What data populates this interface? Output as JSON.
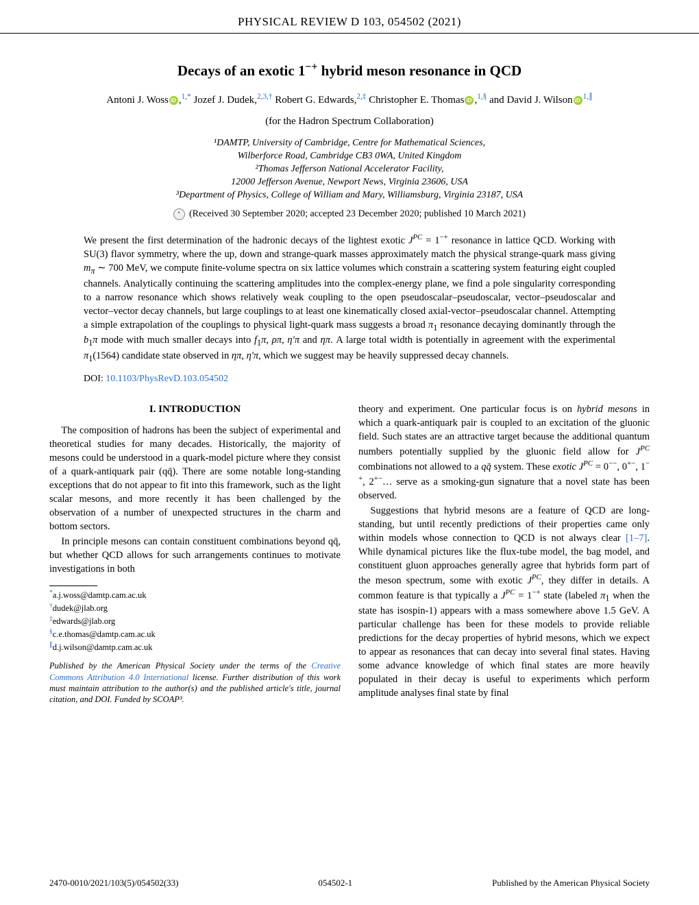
{
  "journal_header": "PHYSICAL REVIEW D 103, 054502 (2021)",
  "title_html": "Decays of an exotic 1<sup>−+</sup> hybrid meson resonance in QCD",
  "authors": {
    "a1": {
      "name": "Antoni J. Woss",
      "sup": "1,*"
    },
    "a2": {
      "name": "Jozef J. Dudek",
      "sup": "2,3,†"
    },
    "a3": {
      "name": "Robert G. Edwards",
      "sup": "2,‡"
    },
    "a4": {
      "name": "Christopher E. Thomas",
      "sup": "1,§"
    },
    "a5": {
      "name": "David J. Wilson",
      "sup": "1,∥"
    }
  },
  "collaboration": "(for the Hadron Spectrum Collaboration)",
  "affiliations": {
    "l1": "¹DAMTP, University of Cambridge, Centre for Mathematical Sciences,",
    "l2": "Wilberforce Road, Cambridge CB3 0WA, United Kingdom",
    "l3": "²Thomas Jefferson National Accelerator Facility,",
    "l4": "12000 Jefferson Avenue, Newport News, Virginia 23606, USA",
    "l5": "³Department of Physics, College of William and Mary, Williamsburg, Virginia 23187, USA"
  },
  "received": "(Received 30 September 2020; accepted 23 December 2020; published 10 March 2021)",
  "abstract_html": "We present the first determination of the hadronic decays of the lightest exotic <i>J<sup>PC</sup></i> = 1<sup>−+</sup> resonance in lattice QCD. Working with SU(3) flavor symmetry, where the up, down and strange-quark masses approximately match the physical strange-quark mass giving <i>m<sub>π</sub></i> ∼ 700 MeV, we compute finite-volume spectra on six lattice volumes which constrain a scattering system featuring eight coupled channels. Analytically continuing the scattering amplitudes into the complex-energy plane, we find a pole singularity corresponding to a narrow resonance which shows relatively weak coupling to the open pseudoscalar–pseudoscalar, vector–pseudoscalar and vector–vector decay channels, but large couplings to at least one kinematically closed axial-vector–pseudoscalar channel. Attempting a simple extrapolation of the couplings to physical light-quark mass suggests a broad <i>π</i><sub>1</sub> resonance decaying dominantly through the <i>b</i><sub>1</sub><i>π</i> mode with much smaller decays into <i>f</i><sub>1</sub><i>π</i>, <i>ρπ</i>, <i>η'π</i> and <i>ηπ</i>. A large total width is potentially in agreement with the experimental <i>π</i><sub>1</sub>(1564) candidate state observed in <i>ηπ</i>, <i>η'π</i>, which we suggest may be heavily suppressed decay channels.",
  "doi": {
    "label": "DOI: ",
    "link_text": "10.1103/PhysRevD.103.054502"
  },
  "section1": {
    "heading": "I. INTRODUCTION"
  },
  "left_col": {
    "p1": "The composition of hadrons has been the subject of experimental and theoretical studies for many decades. Historically, the majority of mesons could be understood in a quark-model picture where they consist of a quark-antiquark pair (qq̄). There are some notable long-standing exceptions that do not appear to fit into this framework, such as the light scalar mesons, and more recently it has been challenged by the observation of a number of unexpected structures in the charm and bottom sectors.",
    "p2": "In principle mesons can contain constituent combinations beyond qq̄, but whether QCD allows for such arrangements continues to motivate investigations in both"
  },
  "right_col": {
    "p1_html": "theory and experiment. One particular focus is on <i>hybrid mesons</i> in which a quark-antiquark pair is coupled to an excitation of the gluonic field. Such states are an attractive target because the additional quantum numbers potentially supplied by the gluonic field allow for <i>J<sup>PC</sup></i> combinations not allowed to a <i>qq̄</i> system. These <i>exotic J<sup>PC</sup></i> = 0<sup>−−</sup>, 0<sup>+−</sup>, 1<sup>−+</sup>, 2<sup>+−</sup>… serve as a smoking-gun signature that a novel state has been observed.",
    "p2_html": "Suggestions that hybrid mesons are a feature of QCD are long-standing, but until recently predictions of their properties came only within models whose connection to QCD is not always clear <span class=\"link\">[1–7]</span>. While dynamical pictures like the flux-tube model, the bag model, and constituent gluon approaches generally agree that hybrids form part of the meson spectrum, some with exotic <i>J<sup>PC</sup></i>, they differ in details. A common feature is that typically a <i>J<sup>PC</sup></i> = 1<sup>−+</sup> state (labeled <i>π</i><sub>1</sub> when the state has isospin-1) appears with a mass somewhere above 1.5 GeV. A particular challenge has been for these models to provide reliable predictions for the decay properties of hybrid mesons, which we expect to appear as resonances that can decay into several final states. Having some advance knowledge of which final states are more heavily populated in their decay is useful to experiments which perform amplitude analyses final state by final"
  },
  "footnotes": {
    "f1": {
      "sym": "*",
      "email": "a.j.woss@damtp.cam.ac.uk"
    },
    "f2": {
      "sym": "†",
      "email": "dudek@jlab.org"
    },
    "f3": {
      "sym": "‡",
      "email": "edwards@jlab.org"
    },
    "f4": {
      "sym": "§",
      "email": "c.e.thomas@damtp.cam.ac.uk"
    },
    "f5": {
      "sym": "∥",
      "email": "d.j.wilson@damtp.cam.ac.uk"
    }
  },
  "pubnote": {
    "pre": "Published by the American Physical Society under the terms of the ",
    "link": "Creative Commons Attribution 4.0 International",
    "post": " license. Further distribution of this work must maintain attribution to the author(s) and the published article's title, journal citation, and DOI. Funded by SCOAP³."
  },
  "footer": {
    "left": "2470-0010/2021/103(5)/054502(33)",
    "center": "054502-1",
    "right": "Published by the American Physical Society"
  }
}
